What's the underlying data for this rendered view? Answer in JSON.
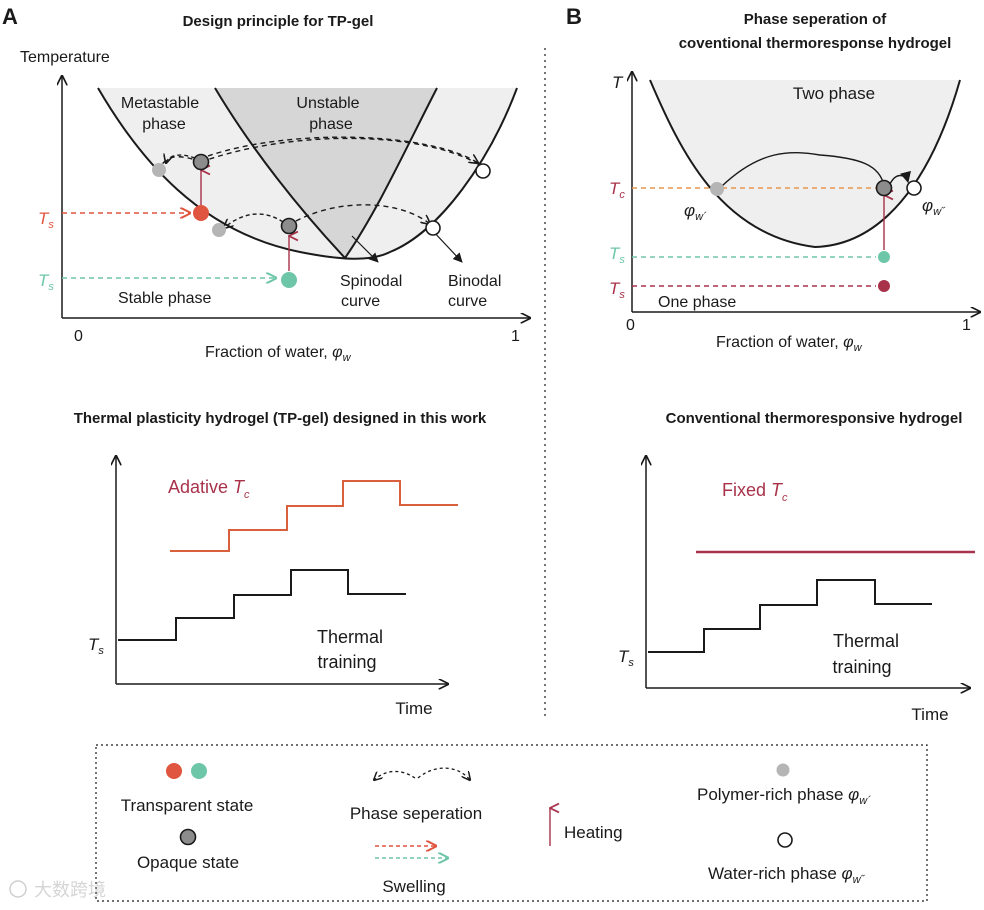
{
  "panel_a": {
    "letter": "A",
    "title": "Design principle for TP-gel",
    "y_axis_label": "Temperature",
    "x_axis_label": "Fraction of water, ",
    "x_axis_symbol": "φ",
    "x_axis_sub": "w",
    "tick_0": "0",
    "tick_1": "1",
    "region_metastable_1": "Metastable",
    "region_metastable_2": "phase",
    "region_unstable_1": "Unstable",
    "region_unstable_2": "phase",
    "region_stable": "Stable phase",
    "spinodal_1": "Spinodal",
    "spinodal_2": "curve",
    "binodal_1": "Binodal",
    "binodal_2": "curve",
    "ts_symbol": "T",
    "ts_sub": "s",
    "bottom_title": "Thermal plasticity hydrogel (TP-gel) designed in this work",
    "adaptive_label": "Adative ",
    "tc_symbol": "T",
    "tc_sub": "c",
    "training_1": "Thermal",
    "training_2": "training",
    "time_label": "Time"
  },
  "panel_b": {
    "letter": "B",
    "title_1": "Phase seperation of",
    "title_2": "coventional thermoresponse hydrogel",
    "y_axis_label": "T",
    "two_phase": "Two phase",
    "one_phase": "One phase",
    "x_axis_label": "Fraction of water, ",
    "x_axis_symbol": "φ",
    "x_axis_sub": "w",
    "tick_0": "0",
    "tick_1": "1",
    "tc_symbol": "T",
    "tc_sub": "c",
    "ts_symbol": "T",
    "ts_sub": "s",
    "phi_symbol": "φ",
    "phi1_sub": "w´",
    "phi2_sub": "w˝",
    "bottom_title": "Conventional thermoresponsive hydrogel",
    "fixed_label": "Fixed ",
    "training_1": "Thermal",
    "training_2": "training",
    "time_label": "Time"
  },
  "legend": {
    "transparent": "Transparent state",
    "opaque": "Opaque state",
    "phase_sep": "Phase seperation",
    "swelling": "Swelling",
    "heating": "Heating",
    "polymer_rich": "Polymer-rich phase ",
    "water_rich": "Water-rich phase ",
    "phi_symbol": "φ",
    "phi1_sub": "w´",
    "phi2_sub": "w˝"
  },
  "watermark": "大数跨境",
  "colors": {
    "red": "#e0553f",
    "teal": "#6ec6a8",
    "grey": "#b5b5b5",
    "dark_grey": "#8c8c8c",
    "crimson": "#a8324a",
    "orange": "#e8964f",
    "step_red": "#d9603c",
    "light_fill": "#efefef",
    "mid_fill": "#d6d6d6"
  }
}
